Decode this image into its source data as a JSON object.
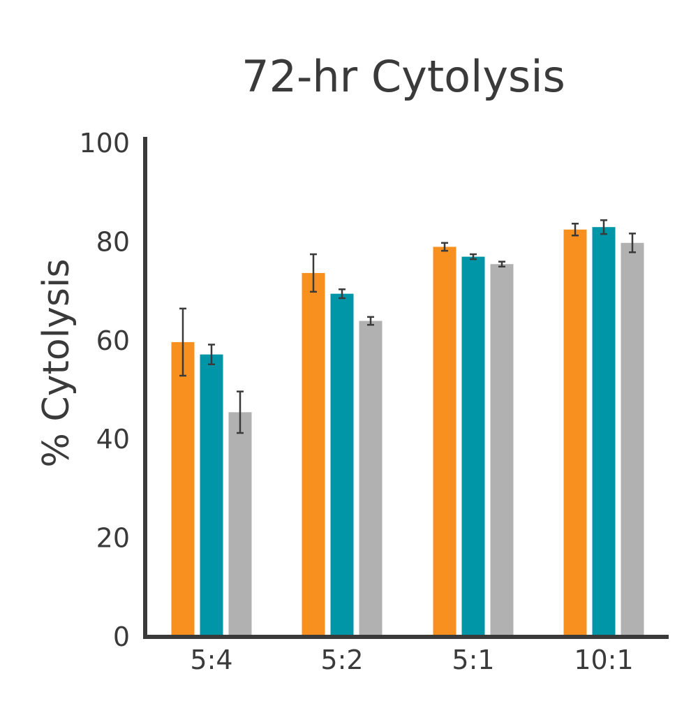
{
  "chart_data": {
    "type": "bar",
    "title": "72-hr Cytolysis",
    "xlabel": "",
    "ylabel": "% Cytolysis",
    "ylim": [
      0,
      100
    ],
    "yticks": [
      0,
      20,
      40,
      60,
      80,
      100
    ],
    "categories": [
      "5:4",
      "5:2",
      "5:1",
      "10:1"
    ],
    "grid": false,
    "legend": "none",
    "series": [
      {
        "color": "#f7901e",
        "values": [
          59.7,
          73.7,
          79.0,
          82.5
        ],
        "errors": [
          6.8,
          3.8,
          0.8,
          1.2
        ]
      },
      {
        "color": "#0096a8",
        "values": [
          57.2,
          69.5,
          77.0,
          83.0
        ],
        "errors": [
          2.0,
          0.9,
          0.5,
          1.4
        ]
      },
      {
        "color": "#b1b1b1",
        "values": [
          45.5,
          64.0,
          75.5,
          79.8
        ],
        "errors": [
          4.2,
          0.8,
          0.5,
          1.9
        ]
      }
    ],
    "colors": {
      "axis": "#3a3a3a",
      "text": "#3a3a3a",
      "error_bar": "#3a3a3a"
    }
  }
}
